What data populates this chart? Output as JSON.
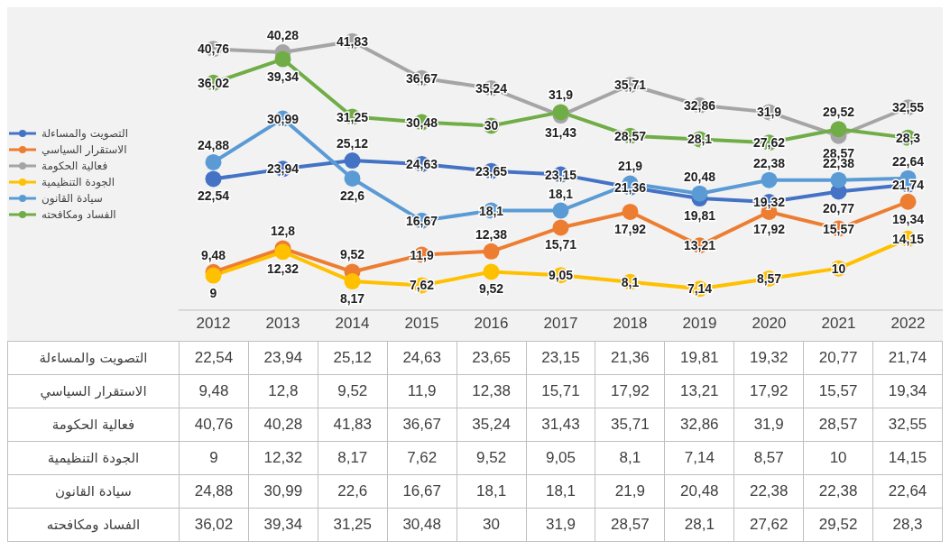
{
  "chart_data": {
    "type": "line",
    "categories": [
      "2012",
      "2013",
      "2014",
      "2015",
      "2016",
      "2017",
      "2018",
      "2019",
      "2020",
      "2021",
      "2022"
    ],
    "series": [
      {
        "name": "التصويت والمساءلة",
        "color": "#4472c4",
        "values": [
          22.54,
          23.94,
          25.12,
          24.63,
          23.65,
          23.15,
          21.36,
          19.81,
          19.32,
          20.77,
          21.74
        ],
        "value_labels": [
          "22,54",
          "23,94",
          "25,12",
          "24,63",
          "23,65",
          "23,15",
          "21,36",
          "19,81",
          "19,32",
          "20,77",
          "21,74"
        ]
      },
      {
        "name": "الاستقرار السياسي",
        "color": "#ed7d31",
        "values": [
          9.48,
          12.8,
          9.52,
          11.9,
          12.38,
          15.71,
          17.92,
          13.21,
          17.92,
          15.57,
          19.34
        ],
        "value_labels": [
          "9,48",
          "12,8",
          "9,52",
          "11,9",
          "12,38",
          "15,71",
          "17,92",
          "13,21",
          "17,92",
          "15,57",
          "19,34"
        ]
      },
      {
        "name": "فعالية الحكومة",
        "color": "#a5a5a5",
        "values": [
          40.76,
          40.28,
          41.83,
          36.67,
          35.24,
          31.43,
          35.71,
          32.86,
          31.9,
          28.57,
          32.55
        ],
        "value_labels": [
          "40,76",
          "40,28",
          "41,83",
          "36,67",
          "35,24",
          "31,43",
          "35,71",
          "32,86",
          "31,9",
          "28,57",
          "32,55"
        ]
      },
      {
        "name": "الجودة التنظيمية",
        "color": "#ffc000",
        "values": [
          9,
          12.32,
          8.17,
          7.62,
          9.52,
          9.05,
          8.1,
          7.14,
          8.57,
          10,
          14.15
        ],
        "value_labels": [
          "9",
          "12,32",
          "8,17",
          "7,62",
          "9,52",
          "9,05",
          "8,1",
          "7,14",
          "8,57",
          "10",
          "14,15"
        ]
      },
      {
        "name": "سيادة القانون",
        "color": "#5b9bd5",
        "values": [
          24.88,
          30.99,
          22.6,
          16.67,
          18.1,
          18.1,
          21.9,
          20.48,
          22.38,
          22.38,
          22.64
        ],
        "value_labels": [
          "24,88",
          "30,99",
          "22,6",
          "16,67",
          "18,1",
          "18,1",
          "21,9",
          "20,48",
          "22,38",
          "22,38",
          "22,64"
        ]
      },
      {
        "name": "الفساد ومكافحته",
        "color": "#70ad47",
        "values": [
          36.02,
          39.34,
          31.25,
          30.48,
          30,
          31.9,
          28.57,
          28.1,
          27.62,
          29.52,
          28.3
        ],
        "value_labels": [
          "36,02",
          "39,34",
          "31,25",
          "30,48",
          "30",
          "31,9",
          "28,57",
          "28,1",
          "27,62",
          "29,52",
          "28,3"
        ]
      }
    ],
    "legend": "left",
    "marker": "circle",
    "line_style": "solid",
    "grid": false
  }
}
